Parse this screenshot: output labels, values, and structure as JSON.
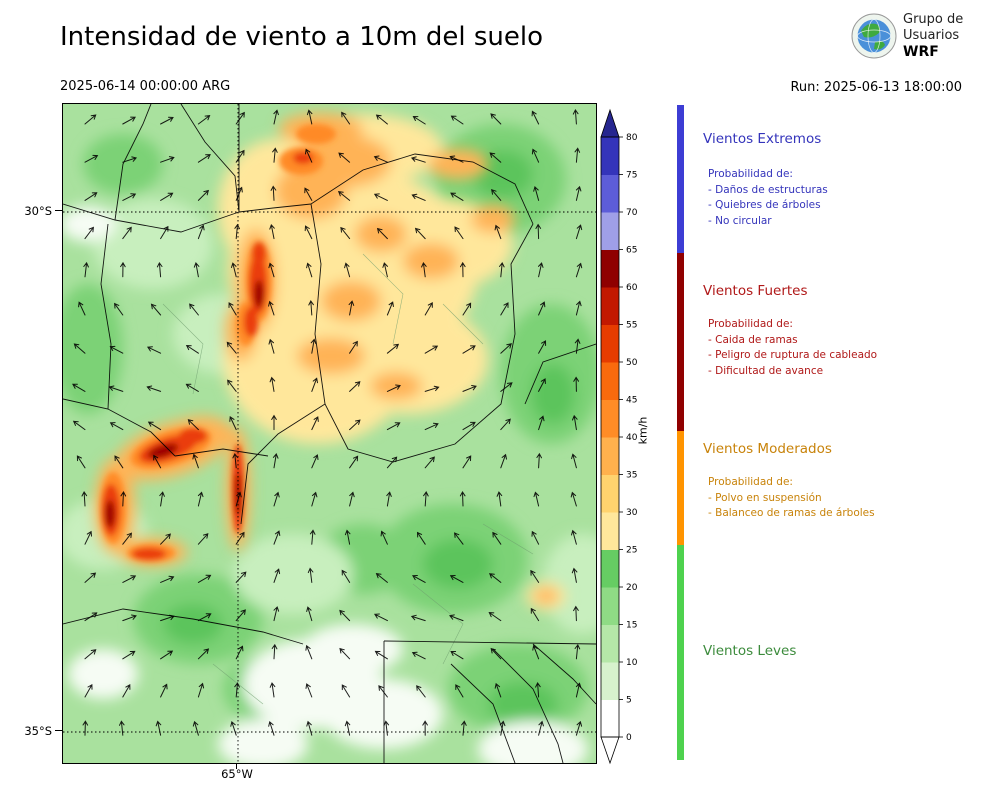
{
  "header": {
    "title": "Intensidad de viento a 10m del suelo",
    "datetime": "2025-06-14 00:00:00 ARG",
    "run_label": "Run: 2025-06-13 18:00:00",
    "logo": {
      "line1": "Grupo de",
      "line2": "Usuarios",
      "line3": "WRF"
    }
  },
  "map": {
    "yticks": [
      "30°S",
      "35°S"
    ],
    "xticks": [
      "65°W"
    ]
  },
  "colorbar": {
    "unit": "km/h",
    "ticks": [
      0,
      5,
      10,
      15,
      20,
      25,
      30,
      35,
      40,
      45,
      50,
      55,
      60,
      65,
      70,
      75,
      80
    ],
    "segment_colors_bottom_to_top": [
      "#ffffff",
      "#d7f2cd",
      "#b5e7a8",
      "#8fdb85",
      "#66cd63",
      "#ffe79b",
      "#ffd36e",
      "#ffb14d",
      "#ff8c26",
      "#f96a0d",
      "#e63c00",
      "#c21800",
      "#8f0000",
      "#9f9fe8",
      "#5d5dd8",
      "#3434ba"
    ],
    "over_color": "#26268f",
    "under_color": "#ffffff"
  },
  "legend": {
    "sections": [
      {
        "title": "Vientos Extremos",
        "text_color": "#3434bb",
        "bar_color": "#3d3dd4",
        "header": "Probabilidad de:",
        "items": [
          "- Daños de estructuras",
          "- Quiebres de árboles",
          "- No circular"
        ]
      },
      {
        "title": "Vientos Fuertes",
        "text_color": "#b01818",
        "bar_color": "#900000",
        "header": "Probabilidad de:",
        "items": [
          "- Caida de ramas",
          "- Peligro de ruptura de cableado",
          "- Dificultad de avance"
        ]
      },
      {
        "title": "Vientos Moderados",
        "text_color": "#c8830a",
        "bar_color": "#ff9400",
        "header": "Probabilidad de:",
        "items": [
          "- Polvo en suspensión",
          "- Balanceo de ramas de árboles"
        ]
      },
      {
        "title": "Vientos Leves",
        "text_color": "#3c8b3c",
        "bar_color": "#4ed24e",
        "header": "",
        "items": []
      }
    ]
  }
}
